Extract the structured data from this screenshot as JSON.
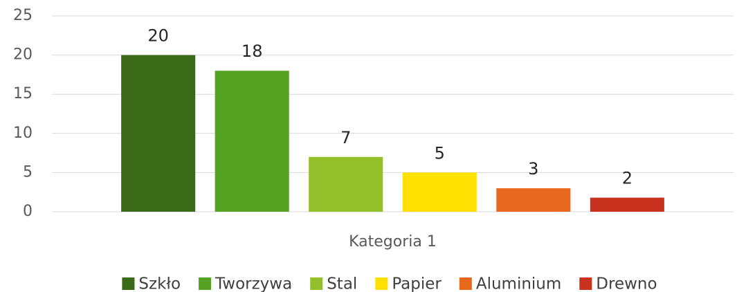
{
  "chart_data": {
    "type": "bar",
    "categories": [
      "Kategoria 1"
    ],
    "series": [
      {
        "name": "Szkło",
        "color": "#3b6b19",
        "values": [
          20
        ]
      },
      {
        "name": "Tworzywa",
        "color": "#56a324",
        "values": [
          18
        ]
      },
      {
        "name": "Stal",
        "color": "#93c02a",
        "values": [
          7
        ]
      },
      {
        "name": "Papier",
        "color": "#ffe000",
        "values": [
          5
        ]
      },
      {
        "name": "Aluminium",
        "color": "#e8681d",
        "values": [
          3
        ]
      },
      {
        "name": "Drewno",
        "color": "#c9321f",
        "values": [
          1.8
        ],
        "value_labels": [
          "2"
        ]
      }
    ],
    "ylim": [
      0,
      25
    ],
    "yticks": [
      0,
      5,
      10,
      15,
      20,
      25
    ],
    "grid": true,
    "legend": "bottom"
  }
}
